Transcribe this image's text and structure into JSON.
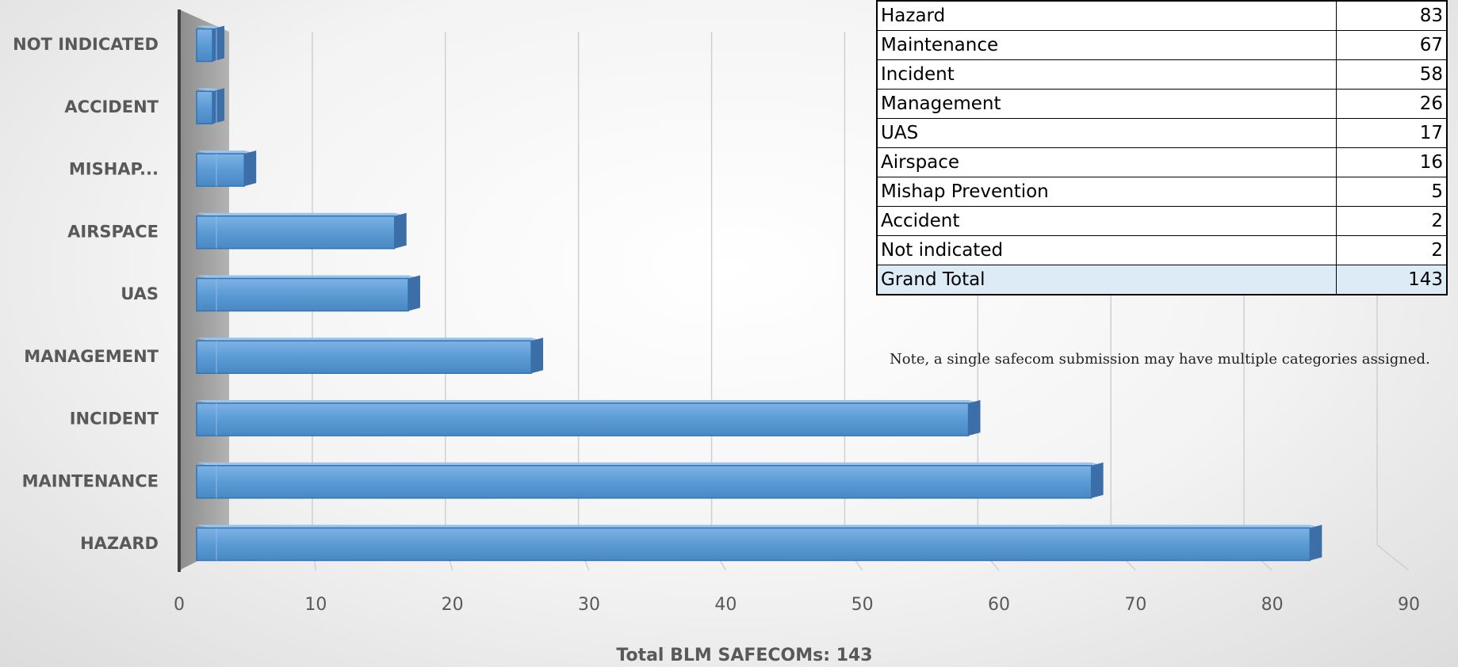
{
  "chart_data": {
    "type": "bar",
    "orientation": "horizontal",
    "style": "3d",
    "categories": [
      "NOT INDICATED",
      "ACCIDENT",
      "MISHAP...",
      "AIRSPACE",
      "UAS",
      "MANAGEMENT",
      "INCIDENT",
      "MAINTENANCE",
      "HAZARD"
    ],
    "values": [
      2,
      2,
      5,
      16,
      17,
      26,
      58,
      67,
      83
    ],
    "xlim": [
      0,
      90
    ],
    "xticks": [
      "0",
      "10",
      "20",
      "30",
      "40",
      "50",
      "60",
      "70",
      "80",
      "90"
    ],
    "xlabel": "Total BLM SAFECOMs: 143",
    "grid": true,
    "bar_color": "#5b9bd5"
  },
  "table": {
    "rows": [
      {
        "label": "Hazard",
        "value": "83"
      },
      {
        "label": "Maintenance",
        "value": "67"
      },
      {
        "label": "Incident",
        "value": "58"
      },
      {
        "label": "Management",
        "value": "26"
      },
      {
        "label": "UAS",
        "value": "17"
      },
      {
        "label": "Airspace",
        "value": "16"
      },
      {
        "label": "Mishap Prevention",
        "value": "5"
      },
      {
        "label": "Accident",
        "value": "2"
      },
      {
        "label": "Not indicated",
        "value": "2"
      }
    ],
    "total": {
      "label": "Grand Total",
      "value": "143"
    },
    "note": "Note, a single safecom submission may have multiple categories assigned."
  }
}
